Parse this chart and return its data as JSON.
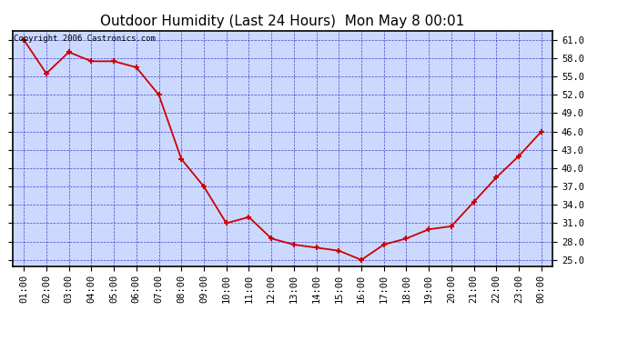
{
  "title": "Outdoor Humidity (Last 24 Hours)  Mon May 8 00:01",
  "copyright": "Copyright 2006 Castronics.com",
  "x_labels": [
    "01:00",
    "02:00",
    "03:00",
    "04:00",
    "05:00",
    "06:00",
    "07:00",
    "08:00",
    "09:00",
    "10:00",
    "11:00",
    "12:00",
    "13:00",
    "14:00",
    "15:00",
    "16:00",
    "17:00",
    "18:00",
    "19:00",
    "20:00",
    "21:00",
    "22:00",
    "23:00",
    "00:00"
  ],
  "y_values": [
    61.0,
    55.5,
    59.0,
    57.5,
    57.5,
    56.5,
    52.0,
    41.5,
    37.0,
    31.0,
    32.0,
    28.5,
    27.5,
    27.0,
    26.5,
    25.0,
    27.5,
    28.5,
    30.0,
    30.5,
    34.5,
    38.5,
    42.0,
    46.0
  ],
  "ylim_min": 24.0,
  "ylim_max": 62.5,
  "yticks": [
    25.0,
    28.0,
    31.0,
    34.0,
    37.0,
    40.0,
    43.0,
    46.0,
    49.0,
    52.0,
    55.0,
    58.0,
    61.0
  ],
  "line_color": "#cc0000",
  "marker_color": "#cc0000",
  "fig_bg_color": "#ffffff",
  "plot_bg_color": "#ccd9ff",
  "grid_color": "#3333cc",
  "axis_color": "#000000",
  "title_color": "#000000",
  "title_fontsize": 11,
  "tick_fontsize": 7.5,
  "copyright_fontsize": 6.5
}
